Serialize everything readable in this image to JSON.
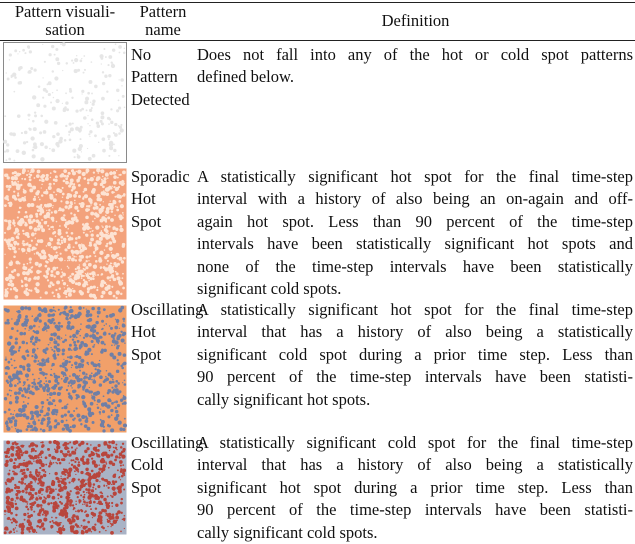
{
  "table": {
    "header": {
      "visualization": [
        "Pattern visuali-",
        "sation"
      ],
      "name": [
        "Pattern",
        "name"
      ],
      "definition": "Definition"
    },
    "rows": [
      {
        "name": [
          "No",
          "Pattern",
          "Detected"
        ],
        "definition": [
          "Does not fall into any of the hot or cold spot patterns",
          "defined below."
        ]
      },
      {
        "name": [
          "Sporadic",
          "Hot",
          "Spot"
        ],
        "definition": [
          "A statistically significant hot spot for the final time-step",
          "interval with a history of also being an on-again and off-",
          "again hot spot. Less than 90 percent of the time-step",
          "intervals have been statistically significant hot spots and",
          "none of the time-step intervals have been statistically",
          "significant cold spots."
        ]
      },
      {
        "name": [
          "Oscillating",
          "Hot",
          "Spot"
        ],
        "definition": [
          "A statistically significant hot spot for the final time-step",
          "interval that has a history of also being a statistically",
          "significant cold spot during a prior time step. Less than",
          "90 percent of the time-step intervals have been statisti-",
          "cally significant hot spots."
        ]
      },
      {
        "name": [
          "Oscillating",
          "Cold",
          "Spot"
        ],
        "definition": [
          "A statistically significant cold spot for the final time-step",
          "interval that has a history of also being a statistically",
          "significant hot spot during a prior time step. Less than",
          "90 percent of the time-step intervals have been statisti-",
          "cally significant cold spots."
        ]
      }
    ]
  }
}
